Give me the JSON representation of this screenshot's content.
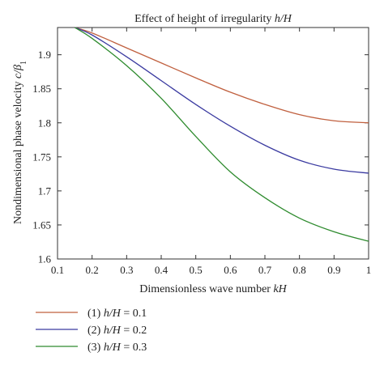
{
  "chart_data": {
    "type": "line",
    "title": "Effect of height of irregularity h/H",
    "xlabel": "Dimensionless wave number kH",
    "ylabel": "Nondimensional phase velocity c/β1",
    "xlim": [
      0.1,
      1.0
    ],
    "ylim": [
      1.6,
      1.94
    ],
    "xticks": [
      "0.1",
      "0.2",
      "0.3",
      "0.4",
      "0.5",
      "0.6",
      "0.7",
      "0.8",
      "0.9",
      "1"
    ],
    "yticks": [
      "1.6",
      "1.65",
      "1.7",
      "1.75",
      "1.8",
      "1.85",
      "1.9"
    ],
    "grid": false,
    "legend_position": "below",
    "x": [
      0.15,
      0.2,
      0.3,
      0.4,
      0.5,
      0.6,
      0.7,
      0.8,
      0.9,
      1.0
    ],
    "series": [
      {
        "name": "(1) h/H = 0.1",
        "color": "#c0603f",
        "values": [
          1.94,
          1.932,
          1.91,
          1.888,
          1.866,
          1.845,
          1.827,
          1.812,
          1.803,
          1.8
        ]
      },
      {
        "name": "(2) h/H = 0.2",
        "color": "#3a3aa0",
        "values": [
          1.94,
          1.929,
          1.897,
          1.862,
          1.827,
          1.795,
          1.767,
          1.745,
          1.732,
          1.726
        ]
      },
      {
        "name": "(3) h/H = 0.3",
        "color": "#2e8b2e",
        "values": [
          1.94,
          1.924,
          1.884,
          1.836,
          1.78,
          1.728,
          1.69,
          1.66,
          1.64,
          1.626
        ]
      }
    ]
  }
}
